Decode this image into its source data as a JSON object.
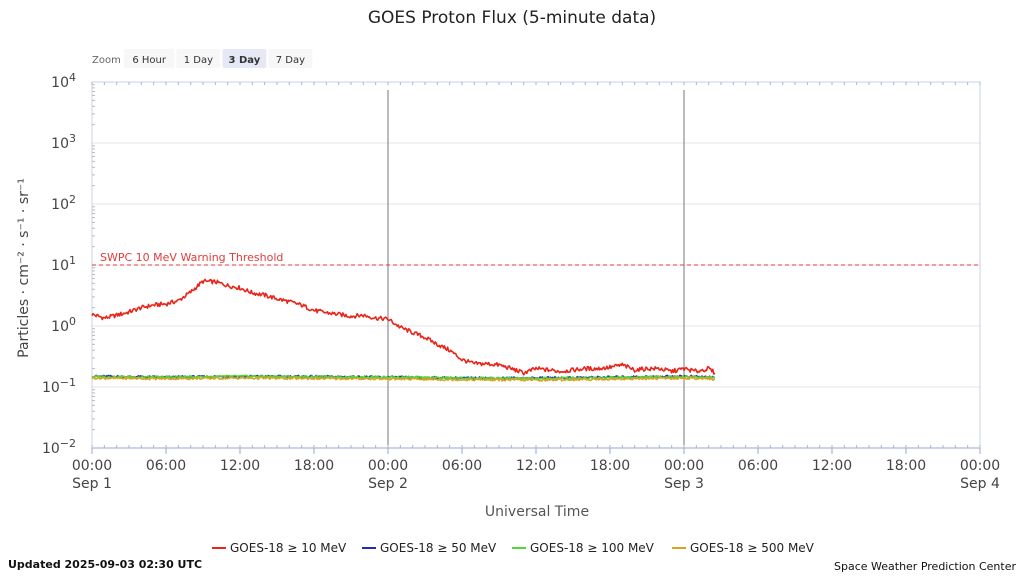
{
  "title": "GOES Proton Flux (5-minute data)",
  "zoom": {
    "label": "Zoom",
    "buttons": [
      {
        "label": "6 Hour",
        "active": false
      },
      {
        "label": "1 Day",
        "active": false
      },
      {
        "label": "3 Day",
        "active": true
      },
      {
        "label": "7 Day",
        "active": false
      }
    ]
  },
  "footer": {
    "updated": "Updated 2025-09-03 02:30 UTC",
    "credit": "Space Weather Prediction Center"
  },
  "threshold_label": "SWPC 10 MeV Warning Threshold",
  "colors": {
    "ge10": "#e8251b",
    "ge50": "#1f2fb5",
    "ge100": "#4fd73a",
    "ge500": "#d9a222",
    "threshold": "#e23b3b"
  },
  "chart_data": {
    "type": "line",
    "title": "GOES Proton Flux (5-minute data)",
    "xlabel": "Universal Time",
    "ylabel": "Particles · cm⁻² · s⁻¹ · sr⁻¹",
    "yscale": "log",
    "ylim": [
      0.01,
      10000
    ],
    "xlim": [
      "2025-09-01T00:00Z",
      "2025-09-04T00:00Z"
    ],
    "y_ticks": [
      {
        "value": 10000,
        "base": "10",
        "exp": "4"
      },
      {
        "value": 1000,
        "base": "10",
        "exp": "3"
      },
      {
        "value": 100,
        "base": "10",
        "exp": "2"
      },
      {
        "value": 10,
        "base": "10",
        "exp": "1"
      },
      {
        "value": 1,
        "base": "10",
        "exp": "0"
      },
      {
        "value": 0.1,
        "base": "10",
        "exp": "−1"
      },
      {
        "value": 0.01,
        "base": "10",
        "exp": "−2"
      }
    ],
    "x_ticks": [
      {
        "t": "2025-09-01T00:00Z",
        "time": "00:00",
        "date": "Sep 1"
      },
      {
        "t": "2025-09-01T06:00Z",
        "time": "06:00",
        "date": ""
      },
      {
        "t": "2025-09-01T12:00Z",
        "time": "12:00",
        "date": ""
      },
      {
        "t": "2025-09-01T18:00Z",
        "time": "18:00",
        "date": ""
      },
      {
        "t": "2025-09-02T00:00Z",
        "time": "00:00",
        "date": "Sep 2"
      },
      {
        "t": "2025-09-02T06:00Z",
        "time": "06:00",
        "date": ""
      },
      {
        "t": "2025-09-02T12:00Z",
        "time": "12:00",
        "date": ""
      },
      {
        "t": "2025-09-02T18:00Z",
        "time": "18:00",
        "date": ""
      },
      {
        "t": "2025-09-03T00:00Z",
        "time": "00:00",
        "date": "Sep 3"
      },
      {
        "t": "2025-09-03T06:00Z",
        "time": "06:00",
        "date": ""
      },
      {
        "t": "2025-09-03T12:00Z",
        "time": "12:00",
        "date": ""
      },
      {
        "t": "2025-09-03T18:00Z",
        "time": "18:00",
        "date": ""
      },
      {
        "t": "2025-09-04T00:00Z",
        "time": "00:00",
        "date": "Sep 4"
      }
    ],
    "day_lines": [
      "2025-09-02T00:00Z",
      "2025-09-03T00:00Z"
    ],
    "threshold": {
      "value": 10,
      "label": "SWPC 10 MeV Warning Threshold"
    },
    "grid": true,
    "legend_position": "bottom",
    "series": [
      {
        "name": "GOES-18 ≥ 10 MeV",
        "color_key": "ge10",
        "x": [
          "2025-09-01T00:00Z",
          "2025-09-01T01:00Z",
          "2025-09-01T02:00Z",
          "2025-09-01T03:00Z",
          "2025-09-01T04:00Z",
          "2025-09-01T05:00Z",
          "2025-09-01T06:00Z",
          "2025-09-01T07:00Z",
          "2025-09-01T08:00Z",
          "2025-09-01T09:00Z",
          "2025-09-01T10:00Z",
          "2025-09-01T11:00Z",
          "2025-09-01T12:00Z",
          "2025-09-01T13:00Z",
          "2025-09-01T14:00Z",
          "2025-09-01T15:00Z",
          "2025-09-01T16:00Z",
          "2025-09-01T17:00Z",
          "2025-09-01T18:00Z",
          "2025-09-01T19:00Z",
          "2025-09-01T20:00Z",
          "2025-09-01T21:00Z",
          "2025-09-01T22:00Z",
          "2025-09-01T23:00Z",
          "2025-09-02T00:00Z",
          "2025-09-02T01:00Z",
          "2025-09-02T02:00Z",
          "2025-09-02T03:00Z",
          "2025-09-02T04:00Z",
          "2025-09-02T05:00Z",
          "2025-09-02T06:00Z",
          "2025-09-02T07:00Z",
          "2025-09-02T08:00Z",
          "2025-09-02T09:00Z",
          "2025-09-02T10:00Z",
          "2025-09-02T11:00Z",
          "2025-09-02T12:00Z",
          "2025-09-02T13:00Z",
          "2025-09-02T14:00Z",
          "2025-09-02T15:00Z",
          "2025-09-02T16:00Z",
          "2025-09-02T17:00Z",
          "2025-09-02T18:00Z",
          "2025-09-02T19:00Z",
          "2025-09-02T20:00Z",
          "2025-09-02T21:00Z",
          "2025-09-02T22:00Z",
          "2025-09-02T23:00Z",
          "2025-09-03T00:00Z",
          "2025-09-03T01:00Z",
          "2025-09-03T02:00Z",
          "2025-09-03T02:30Z"
        ],
        "y": [
          1.55,
          1.35,
          1.5,
          1.7,
          2.0,
          2.2,
          2.3,
          2.6,
          3.6,
          5.4,
          5.3,
          4.6,
          4.2,
          3.5,
          3.2,
          2.8,
          2.5,
          2.2,
          1.8,
          1.65,
          1.55,
          1.45,
          1.5,
          1.35,
          1.3,
          0.95,
          0.78,
          0.65,
          0.5,
          0.4,
          0.28,
          0.24,
          0.24,
          0.23,
          0.2,
          0.17,
          0.2,
          0.19,
          0.18,
          0.19,
          0.2,
          0.2,
          0.21,
          0.23,
          0.19,
          0.2,
          0.2,
          0.18,
          0.2,
          0.18,
          0.2,
          0.17
        ]
      },
      {
        "name": "GOES-18 ≥ 50 MeV",
        "color_key": "ge50",
        "x": [
          "2025-09-01T00:00Z",
          "2025-09-01T06:00Z",
          "2025-09-01T12:00Z",
          "2025-09-01T18:00Z",
          "2025-09-02T00:00Z",
          "2025-09-02T06:00Z",
          "2025-09-02T12:00Z",
          "2025-09-02T18:00Z",
          "2025-09-03T00:00Z",
          "2025-09-03T02:30Z"
        ],
        "y": [
          0.15,
          0.145,
          0.15,
          0.148,
          0.145,
          0.14,
          0.14,
          0.145,
          0.15,
          0.145
        ]
      },
      {
        "name": "GOES-18 ≥ 100 MeV",
        "color_key": "ge100",
        "x": [
          "2025-09-01T00:00Z",
          "2025-09-01T06:00Z",
          "2025-09-01T12:00Z",
          "2025-09-01T18:00Z",
          "2025-09-02T00:00Z",
          "2025-09-02T06:00Z",
          "2025-09-02T12:00Z",
          "2025-09-02T18:00Z",
          "2025-09-03T00:00Z",
          "2025-09-03T02:30Z"
        ],
        "y": [
          0.148,
          0.145,
          0.15,
          0.147,
          0.145,
          0.14,
          0.138,
          0.143,
          0.148,
          0.143
        ]
      },
      {
        "name": "GOES-18 ≥ 500 MeV",
        "color_key": "ge500",
        "x": [
          "2025-09-01T00:00Z",
          "2025-09-01T06:00Z",
          "2025-09-01T12:00Z",
          "2025-09-01T18:00Z",
          "2025-09-02T00:00Z",
          "2025-09-02T06:00Z",
          "2025-09-02T12:00Z",
          "2025-09-02T18:00Z",
          "2025-09-03T00:00Z",
          "2025-09-03T02:30Z"
        ],
        "y": [
          0.14,
          0.137,
          0.14,
          0.138,
          0.136,
          0.132,
          0.13,
          0.135,
          0.14,
          0.135
        ]
      }
    ]
  }
}
